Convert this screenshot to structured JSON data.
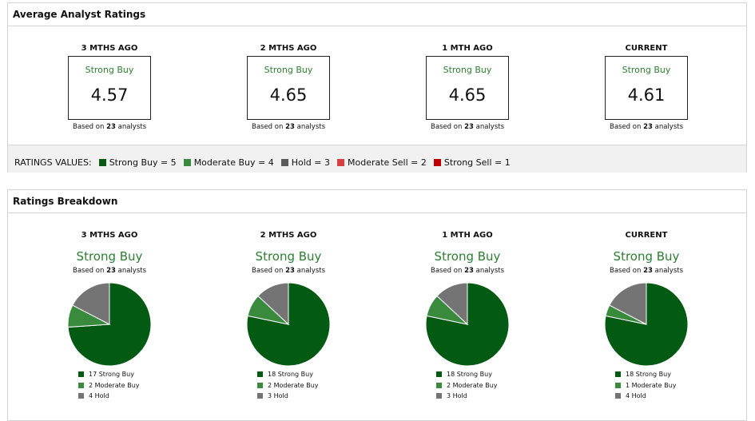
{
  "avg": {
    "title": "Average Analyst Ratings",
    "columns": [
      {
        "period": "3 MTHS AGO",
        "label": "Strong Buy",
        "value": "4.57",
        "based_pre": "Based on ",
        "count": "23",
        "based_post": " analysts"
      },
      {
        "period": "2 MTHS AGO",
        "label": "Strong Buy",
        "value": "4.65",
        "based_pre": "Based on ",
        "count": "23",
        "based_post": " analysts"
      },
      {
        "period": "1 MTH AGO",
        "label": "Strong Buy",
        "value": "4.65",
        "based_pre": "Based on ",
        "count": "23",
        "based_post": " analysts"
      },
      {
        "period": "CURRENT",
        "label": "Strong Buy",
        "value": "4.61",
        "based_pre": "Based on ",
        "count": "23",
        "based_post": " analysts"
      }
    ],
    "ratings_label": "RATINGS VALUES:",
    "ratings": [
      {
        "text": "Strong Buy = 5",
        "color": "#0b5a14"
      },
      {
        "text": "Moderate Buy = 4",
        "color": "#3a8a3e"
      },
      {
        "text": "Hold = 3",
        "color": "#5a5a5a"
      },
      {
        "text": "Moderate Sell = 2",
        "color": "#d84040"
      },
      {
        "text": "Strong Sell = 1",
        "color": "#c00000"
      }
    ]
  },
  "breakdown": {
    "title": "Ratings Breakdown",
    "colors": [
      "#035a12",
      "#3a8a3e",
      "#747474"
    ],
    "columns": [
      {
        "period": "3 MTHS AGO",
        "label": "Strong Buy",
        "based_pre": "Based on ",
        "count": "23",
        "based_post": " analysts",
        "slices": [
          17,
          2,
          4
        ],
        "legend": [
          "17 Strong Buy",
          "2 Moderate Buy",
          "4 Hold"
        ]
      },
      {
        "period": "2 MTHS AGO",
        "label": "Strong Buy",
        "based_pre": "Based on ",
        "count": "23",
        "based_post": " analysts",
        "slices": [
          18,
          2,
          3
        ],
        "legend": [
          "18 Strong Buy",
          "2 Moderate Buy",
          "3 Hold"
        ]
      },
      {
        "period": "1 MTH AGO",
        "label": "Strong Buy",
        "based_pre": "Based on ",
        "count": "23",
        "based_post": " analysts",
        "slices": [
          18,
          2,
          3
        ],
        "legend": [
          "18 Strong Buy",
          "2 Moderate Buy",
          "3 Hold"
        ]
      },
      {
        "period": "CURRENT",
        "label": "Strong Buy",
        "based_pre": "Based on ",
        "count": "23",
        "based_post": " analysts",
        "slices": [
          18,
          1,
          4
        ],
        "legend": [
          "18 Strong Buy",
          "1 Moderate Buy",
          "4 Hold"
        ]
      }
    ]
  }
}
